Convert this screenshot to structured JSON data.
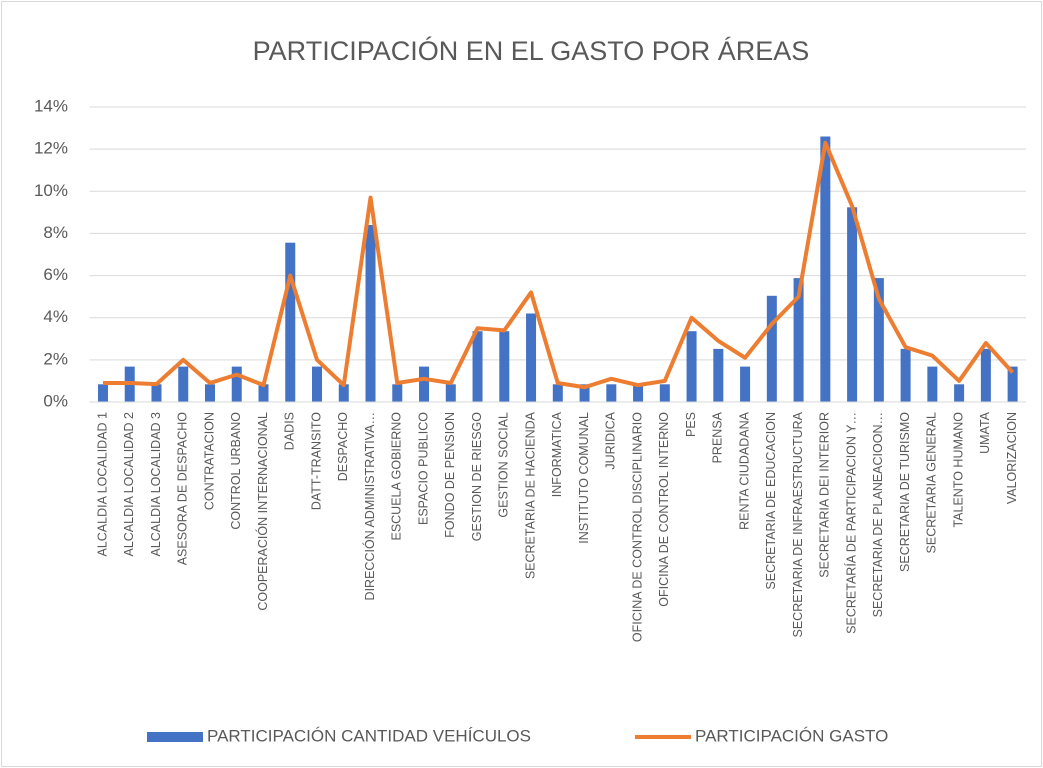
{
  "chart_data": {
    "type": "bar_line",
    "title": "PARTICIPACIÓN EN EL GASTO POR ÁREAS",
    "categories": [
      "ALCALDIA LOCALIDAD 1",
      "ALCALDIA LOCALIDAD 2",
      "ALCALDIA LOCALIDAD 3",
      "ASESORA DE DESPACHO",
      "CONTRATACION",
      "CONTROL URBANO",
      "COOPERACIÓN INTERNACIONAL",
      "DADIS",
      "DATT-TRANSITO",
      "DESPACHO",
      "DIRECCIÓN ADMINISTRATIVA…",
      "ESCUELA GOBIERNO",
      "ESPACIO PUBLICO",
      "FONDO DE PENSION",
      "GESTION DE RIESGO",
      "GESTION SOCIAL",
      "SECRETARIA DE HACIENDA",
      "INFORMATICA",
      "INSTITUTO COMUNAL",
      "JURIDICA",
      "OFICINA DE CONTROL DISCIPLINARIO",
      "OFICINA DE CONTROL INTERNO",
      "PES",
      "PRENSA",
      "RENTA CIUDADANA",
      "SECRETARIA DE EDUCACION",
      "SECRETARIA DE INFRAESTRUCTURA",
      "SECRETARIA DEI INTERIOR",
      "SECRETARÍA DE PARTICIPACION Y…",
      "SECRETARIA DE PLANEACIOON…",
      "SECRETARIA DE TURISMO",
      "SECRETARIA GENERAL",
      "TALENTO HUMANO",
      "UMATA",
      "VALORIZACION"
    ],
    "series": [
      {
        "name": "PARTICIPACIÓN CANTIDAD VEHÍCULOS",
        "type": "bar",
        "color": "#4472c4",
        "values": [
          0.84,
          1.68,
          0.84,
          1.68,
          0.84,
          1.68,
          0.84,
          7.56,
          1.68,
          0.84,
          8.4,
          0.84,
          1.68,
          0.84,
          3.36,
          3.36,
          4.2,
          0.84,
          0.84,
          0.84,
          0.84,
          0.84,
          3.36,
          2.52,
          1.68,
          5.04,
          5.88,
          12.6,
          9.24,
          5.88,
          2.52,
          1.68,
          0.84,
          2.52,
          1.68
        ]
      },
      {
        "name": "PARTICIPACIÓN GASTO",
        "type": "line",
        "color": "#ed7d31",
        "values": [
          0.9,
          0.9,
          0.85,
          2.0,
          0.9,
          1.3,
          0.8,
          6.0,
          2.0,
          0.8,
          9.7,
          0.9,
          1.1,
          0.9,
          3.5,
          3.4,
          5.2,
          0.9,
          0.7,
          1.1,
          0.8,
          1.0,
          4.0,
          2.9,
          2.1,
          3.7,
          5.0,
          12.3,
          9.3,
          4.9,
          2.6,
          2.2,
          1.0,
          2.8,
          1.4
        ]
      }
    ],
    "ylim": [
      0,
      14
    ],
    "yticks": [
      {
        "value": 0,
        "label": "0%"
      },
      {
        "value": 2,
        "label": "2%"
      },
      {
        "value": 4,
        "label": "4%"
      },
      {
        "value": 6,
        "label": "6%"
      },
      {
        "value": 8,
        "label": "8%"
      },
      {
        "value": 10,
        "label": "10%"
      },
      {
        "value": 12,
        "label": "12%"
      },
      {
        "value": 14,
        "label": "14%"
      }
    ],
    "grid": true,
    "legend": "bottom"
  }
}
